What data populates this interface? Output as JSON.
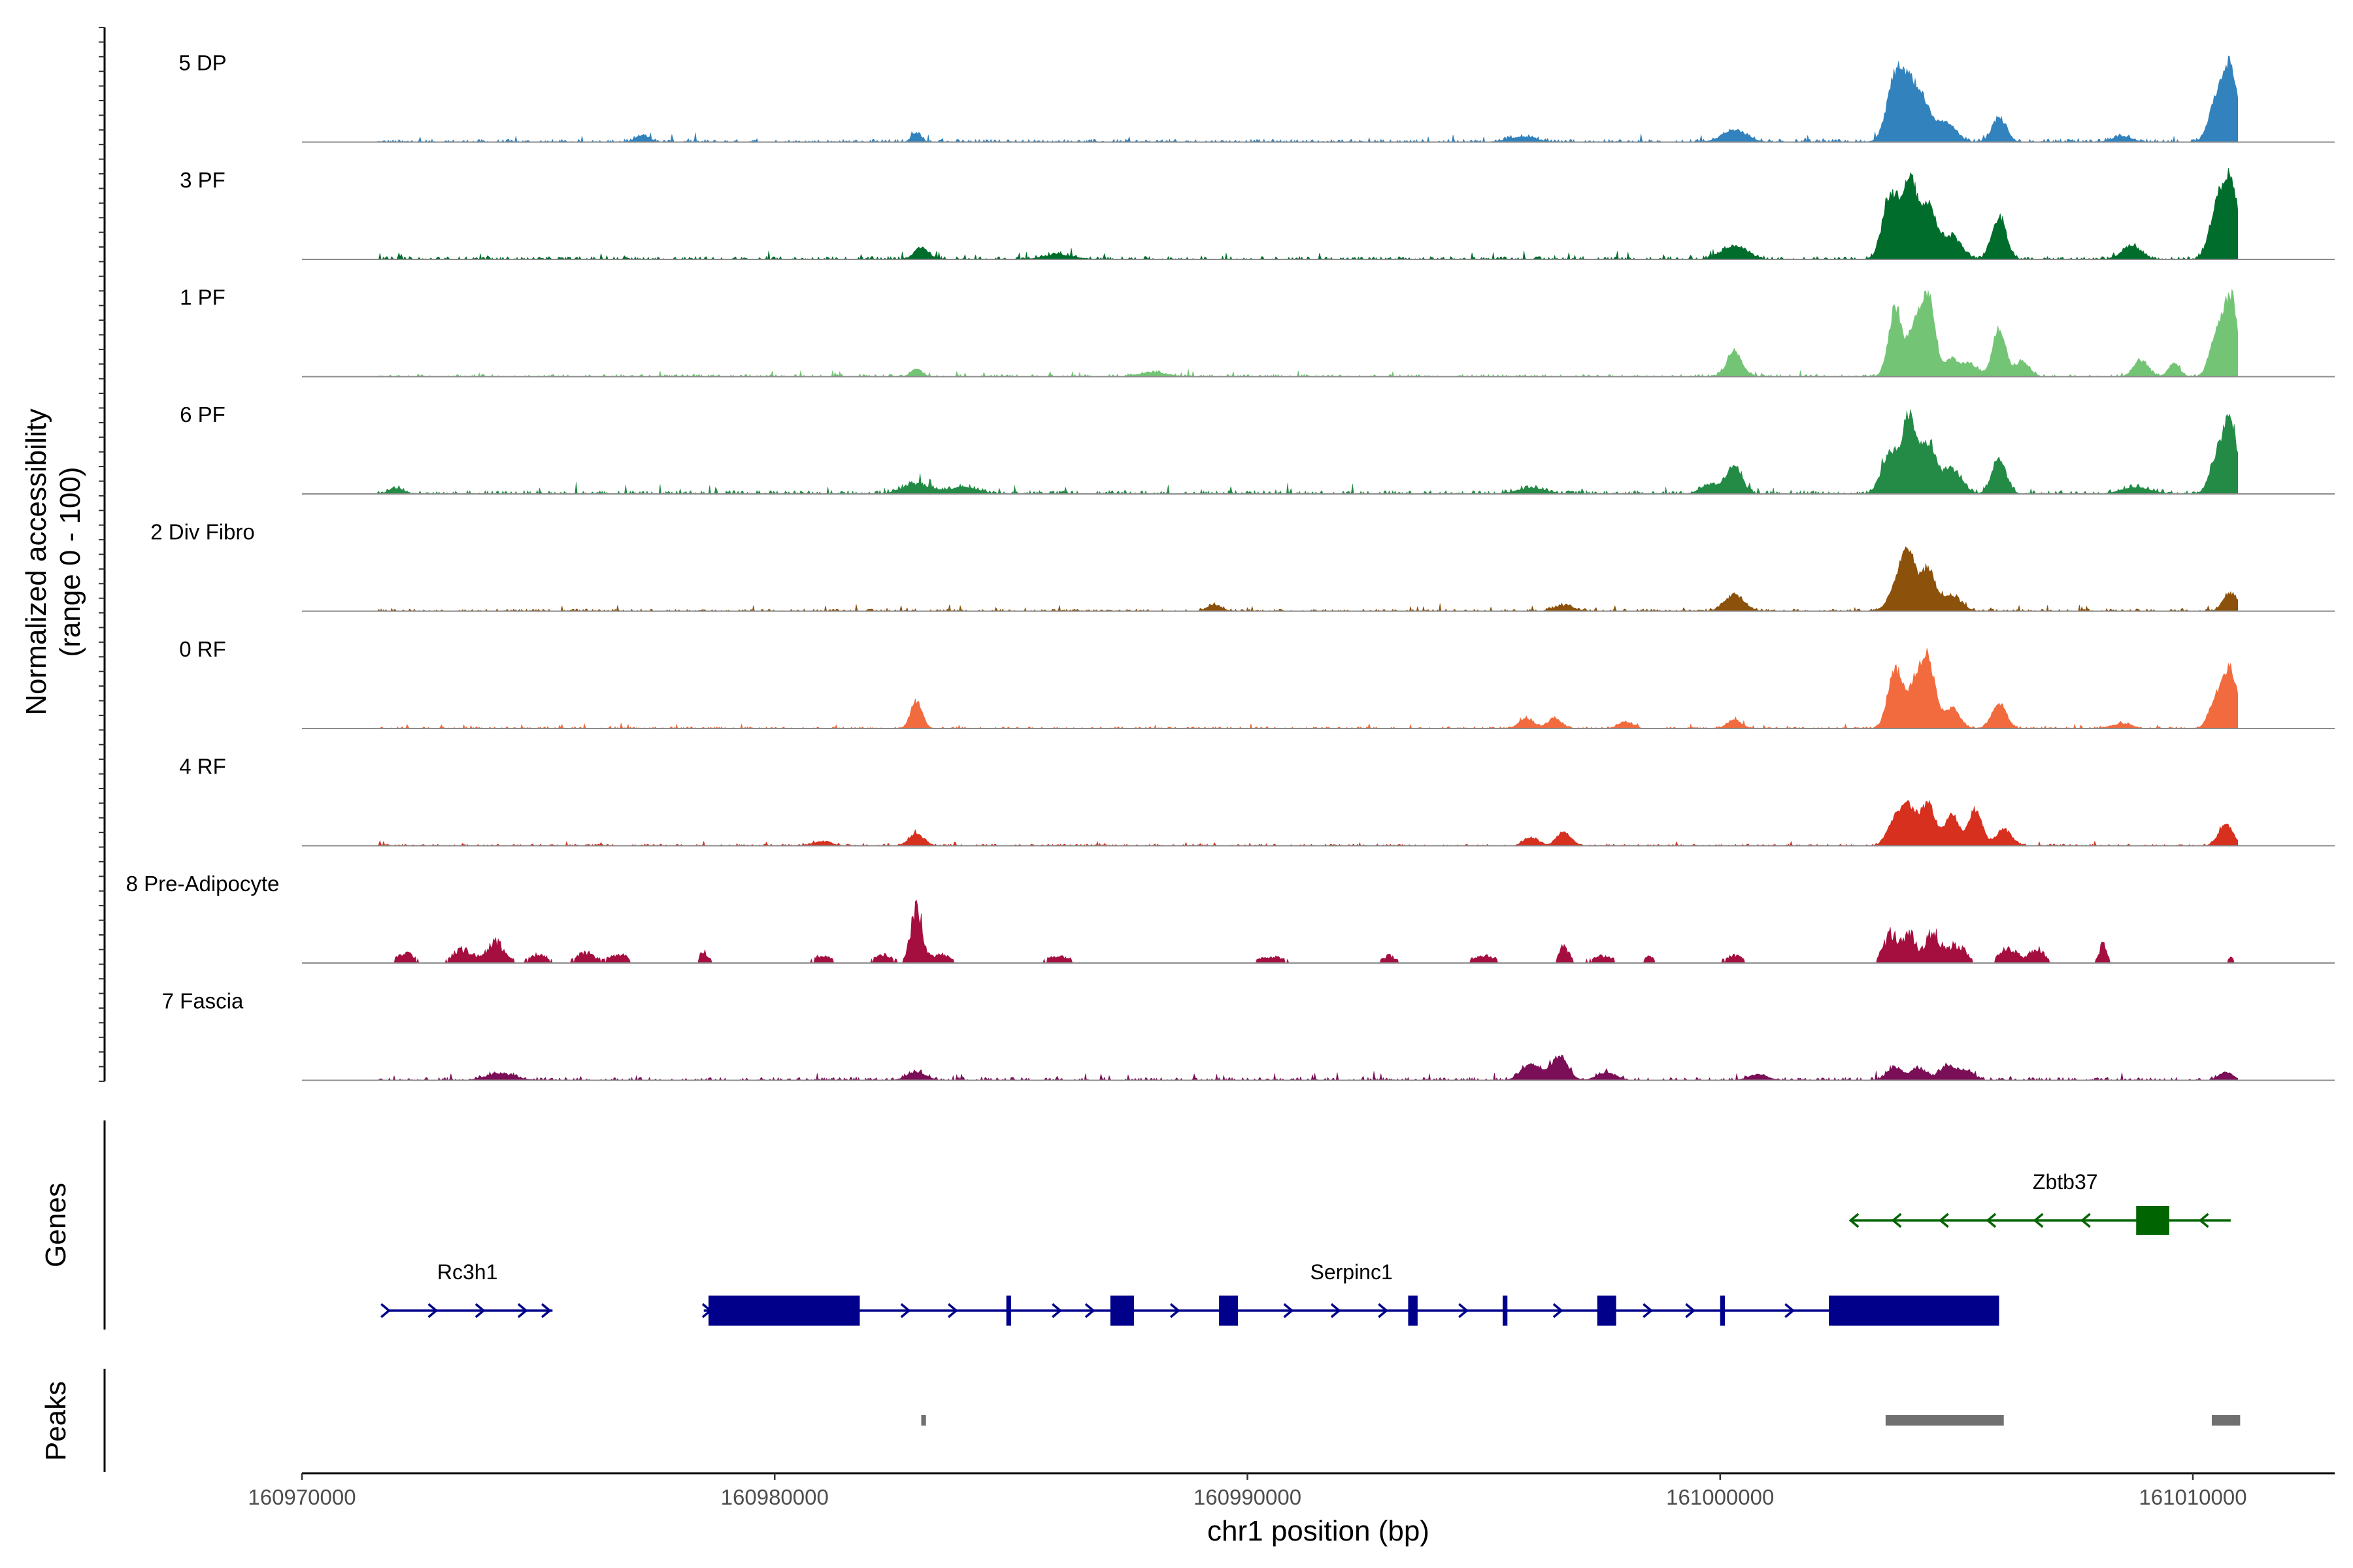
{
  "chart_data": {
    "type": "area",
    "title": "",
    "ylabel_line1": "Normalized accessibility",
    "ylabel_line2": "(range 0 - 100)",
    "xlabel": "chr1 position (bp)",
    "xlim": [
      160970000,
      161013000
    ],
    "x_ticks": [
      160970000,
      160980000,
      160990000,
      161000000,
      161010000
    ],
    "x_tick_labels": [
      "160970000",
      "160980000",
      "160990000",
      "161000000",
      "161010000"
    ],
    "ylim": [
      0,
      100
    ],
    "genes_label": "Genes",
    "peaks_label": "Peaks",
    "series": [
      {
        "name": "5 DP",
        "color": "#3182bd",
        "style": "smooth",
        "bg": 5,
        "peaks": [
          [
            160977200,
            8,
            150
          ],
          [
            160983000,
            11,
            100
          ],
          [
            160995800,
            6,
            300
          ],
          [
            161000300,
            14,
            260
          ],
          [
            161003700,
            68,
            180
          ],
          [
            161004000,
            52,
            200
          ],
          [
            161004300,
            35,
            200
          ],
          [
            161004800,
            22,
            200
          ],
          [
            161005900,
            30,
            150
          ],
          [
            161008500,
            7,
            200
          ],
          [
            161010500,
            48,
            160
          ],
          [
            161010800,
            86,
            160
          ]
        ]
      },
      {
        "name": "3 PF",
        "color": "#006d2c",
        "style": "smooth",
        "bg": 5,
        "peaks": [
          [
            160983100,
            14,
            150
          ],
          [
            160986000,
            6,
            300
          ],
          [
            161000300,
            16,
            260
          ],
          [
            161003600,
            78,
            160
          ],
          [
            161004000,
            92,
            160
          ],
          [
            161004400,
            62,
            170
          ],
          [
            161004900,
            28,
            200
          ],
          [
            161005900,
            52,
            150
          ],
          [
            161008700,
            16,
            200
          ],
          [
            161010500,
            55,
            160
          ],
          [
            161010800,
            90,
            160
          ]
        ]
      },
      {
        "name": "1 PF",
        "color": "#74c476",
        "style": "smooth",
        "bg": 4,
        "peaks": [
          [
            160983000,
            9,
            120
          ],
          [
            160988000,
            5,
            300
          ],
          [
            161000300,
            30,
            160
          ],
          [
            161003700,
            80,
            140
          ],
          [
            161004100,
            58,
            140
          ],
          [
            161004400,
            97,
            140
          ],
          [
            161004900,
            22,
            150
          ],
          [
            161005300,
            15,
            150
          ],
          [
            161005900,
            55,
            140
          ],
          [
            161006400,
            18,
            150
          ],
          [
            161008900,
            20,
            150
          ],
          [
            161009600,
            16,
            120
          ],
          [
            161010500,
            45,
            150
          ],
          [
            161010800,
            92,
            150
          ]
        ]
      },
      {
        "name": "6 PF",
        "color": "#238b45",
        "style": "smooth",
        "bg": 6,
        "peaks": [
          [
            160972000,
            7,
            150
          ],
          [
            160983000,
            12,
            300
          ],
          [
            160984000,
            8,
            300
          ],
          [
            160996000,
            7,
            300
          ],
          [
            160999800,
            12,
            200
          ],
          [
            161000300,
            34,
            160
          ],
          [
            161003600,
            50,
            180
          ],
          [
            161004000,
            88,
            140
          ],
          [
            161004400,
            60,
            160
          ],
          [
            161004900,
            30,
            200
          ],
          [
            161005900,
            42,
            150
          ],
          [
            161008800,
            8,
            300
          ],
          [
            161010500,
            40,
            150
          ],
          [
            161010800,
            85,
            150
          ]
        ]
      },
      {
        "name": "2 Div Fibro",
        "color": "#8c510a",
        "style": "smooth",
        "bg": 4,
        "peaks": [
          [
            160989300,
            8,
            150
          ],
          [
            160996700,
            7,
            200
          ],
          [
            161000300,
            20,
            200
          ],
          [
            161003800,
            35,
            200
          ],
          [
            161004000,
            52,
            150
          ],
          [
            161004400,
            50,
            150
          ],
          [
            161004900,
            18,
            200
          ],
          [
            161010800,
            22,
            150
          ]
        ]
      },
      {
        "name": "0 RF",
        "color": "#f16b3e",
        "style": "smooth",
        "bg": 3,
        "peaks": [
          [
            160983000,
            33,
            120
          ],
          [
            160995900,
            12,
            150
          ],
          [
            160996500,
            12,
            150
          ],
          [
            160998000,
            8,
            150
          ],
          [
            161000300,
            10,
            150
          ],
          [
            161003700,
            72,
            150
          ],
          [
            161004100,
            48,
            150
          ],
          [
            161004400,
            80,
            150
          ],
          [
            161004900,
            25,
            160
          ],
          [
            161005900,
            30,
            150
          ],
          [
            161008500,
            6,
            200
          ],
          [
            161010500,
            34,
            150
          ],
          [
            161010800,
            68,
            150
          ]
        ]
      },
      {
        "name": "4 RF",
        "color": "#d7301f",
        "style": "smooth",
        "bg": 3,
        "peaks": [
          [
            160981000,
            5,
            200
          ],
          [
            160983000,
            14,
            160
          ],
          [
            160996000,
            10,
            150
          ],
          [
            160996700,
            16,
            150
          ],
          [
            161003700,
            30,
            160
          ],
          [
            161004000,
            45,
            150
          ],
          [
            161004400,
            50,
            150
          ],
          [
            161004900,
            38,
            150
          ],
          [
            161005400,
            44,
            140
          ],
          [
            161006000,
            20,
            160
          ],
          [
            161010700,
            26,
            150
          ]
        ]
      },
      {
        "name": "8 Pre-Adipocyte",
        "color": "#a50f3f",
        "style": "spiky",
        "bg": 0,
        "peaks": [
          [
            160972200,
            14,
            180
          ],
          [
            160973400,
            20,
            200
          ],
          [
            160974100,
            28,
            200
          ],
          [
            160975000,
            12,
            200
          ],
          [
            160976000,
            14,
            200
          ],
          [
            160976700,
            12,
            200
          ],
          [
            160978500,
            15,
            100
          ],
          [
            160981000,
            10,
            200
          ],
          [
            160982300,
            11,
            200
          ],
          [
            160983000,
            75,
            120
          ],
          [
            160983500,
            12,
            200
          ],
          [
            160986000,
            10,
            250
          ],
          [
            160990500,
            9,
            300
          ],
          [
            160993000,
            10,
            150
          ],
          [
            160995000,
            11,
            250
          ],
          [
            160996700,
            26,
            100
          ],
          [
            160997500,
            10,
            250
          ],
          [
            160998500,
            9,
            100
          ],
          [
            161000300,
            10,
            200
          ],
          [
            161003600,
            40,
            150
          ],
          [
            161004000,
            38,
            150
          ],
          [
            161004500,
            42,
            150
          ],
          [
            161005000,
            25,
            200
          ],
          [
            161006100,
            22,
            180
          ],
          [
            161006700,
            20,
            150
          ],
          [
            161008100,
            28,
            80
          ],
          [
            161010800,
            8,
            60
          ]
        ]
      },
      {
        "name": "7 Fascia",
        "color": "#7a0f57",
        "style": "smooth",
        "bg": 5,
        "peaks": [
          [
            160974200,
            8,
            300
          ],
          [
            160983000,
            10,
            200
          ],
          [
            160996000,
            20,
            200
          ],
          [
            160996600,
            28,
            180
          ],
          [
            160997600,
            9,
            200
          ],
          [
            161000800,
            7,
            200
          ],
          [
            161003700,
            16,
            160
          ],
          [
            161004200,
            14,
            160
          ],
          [
            161004800,
            18,
            160
          ],
          [
            161005200,
            12,
            160
          ],
          [
            161010700,
            10,
            150
          ]
        ]
      }
    ],
    "genes": [
      {
        "name": "Rc3h1",
        "strand": "+",
        "color": "#00008b",
        "start": 160971800,
        "end": 160975300,
        "exons": [],
        "arrows": [
          160971800,
          160972800,
          160973800,
          160974700,
          160975200
        ]
      },
      {
        "name": "Serpinc1",
        "strand": "+",
        "color": "#00008b",
        "start": 160978500,
        "end": 161005900,
        "exons": [
          [
            160978600,
            160981800
          ],
          [
            160984900,
            160985000
          ],
          [
            160987100,
            160987600
          ],
          [
            160989400,
            160989800
          ],
          [
            160993400,
            160993600
          ],
          [
            160995400,
            160995500
          ],
          [
            160997400,
            160997800
          ],
          [
            161000000,
            161000100
          ],
          [
            161002300,
            161005900
          ]
        ],
        "arrows": [
          160978600,
          160982800,
          160983800,
          160986000,
          160986700,
          160988500,
          160990900,
          160991900,
          160992900,
          160994600,
          160996600,
          160998500,
          160999400,
          161001500
        ]
      },
      {
        "name": "Zbtb37",
        "strand": "-",
        "color": "#006400",
        "start": 161002800,
        "end": 161010800,
        "exons": [
          [
            161008800,
            161009500
          ]
        ],
        "arrows": [
          161002800,
          161003700,
          161004700,
          161005700,
          161006700,
          161007700,
          161010200
        ]
      }
    ],
    "peaks_track": {
      "color": "#707070",
      "regions": [
        [
          160983100,
          160983200
        ],
        [
          161003500,
          161006000
        ],
        [
          161010400,
          161011000
        ]
      ]
    }
  }
}
